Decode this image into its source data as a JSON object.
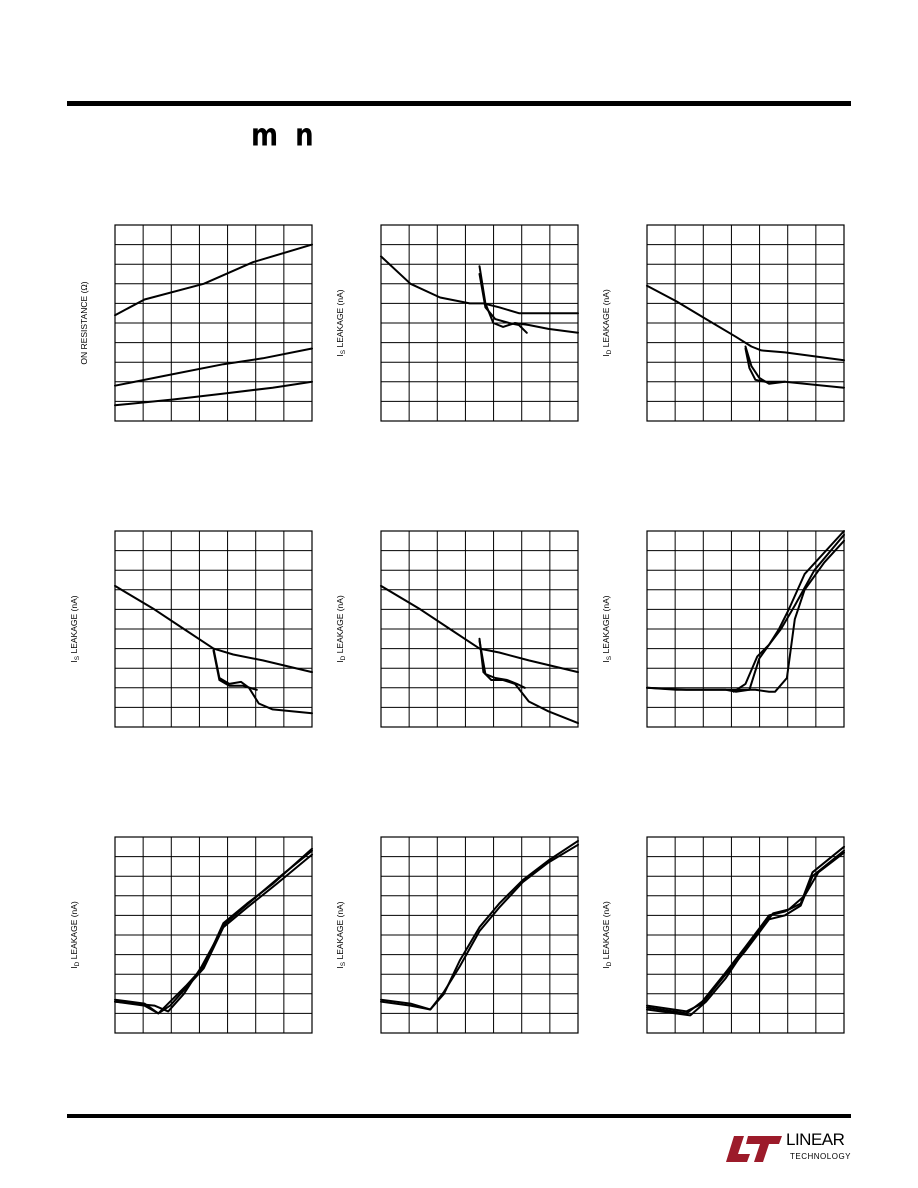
{
  "header": {
    "glyphs": "m  n"
  },
  "logo": {
    "word": "LINEAR",
    "sub": "TECHNOLOGY"
  },
  "chart_data": [
    {
      "type": "line",
      "ylabel_main": "ON RESISTANCE (Ω)",
      "ylabel_sub": "",
      "xlim": [
        0,
        100
      ],
      "ylim": [
        0,
        100
      ],
      "grid": true,
      "series": [
        {
          "x": [
            0,
            15,
            45,
            70,
            100
          ],
          "y": [
            54,
            62,
            70,
            81,
            90
          ]
        },
        {
          "x": [
            0,
            25,
            55,
            75,
            100
          ],
          "y": [
            18,
            23,
            29,
            32,
            37
          ]
        },
        {
          "x": [
            0,
            30,
            55,
            80,
            100
          ],
          "y": [
            8,
            11,
            14,
            17,
            20
          ]
        }
      ]
    },
    {
      "type": "line",
      "ylabel_main": "I",
      "ylabel_sub": "S",
      "ylabel_tail": " LEAKAGE (nA)",
      "xlim": [
        0,
        100
      ],
      "ylim": [
        0,
        100
      ],
      "grid": true,
      "series": [
        {
          "x": [
            0,
            15,
            30,
            45,
            52,
            60,
            70,
            100
          ],
          "y": [
            84,
            70,
            63,
            60,
            60,
            58,
            55,
            55
          ]
        },
        {
          "x": [
            50,
            53,
            57,
            62,
            68,
            75,
            85,
            100
          ],
          "y": [
            79,
            60,
            50,
            48,
            50,
            49,
            47,
            45
          ]
        },
        {
          "x": [
            50,
            53,
            58,
            65,
            70,
            74
          ],
          "y": [
            75,
            58,
            52,
            50,
            49,
            45
          ]
        }
      ]
    },
    {
      "type": "line",
      "ylabel_main": "I",
      "ylabel_sub": "D",
      "ylabel_tail": " LEAKAGE (nA)",
      "xlim": [
        0,
        100
      ],
      "ylim": [
        0,
        100
      ],
      "grid": true,
      "series": [
        {
          "x": [
            0,
            15,
            30,
            45,
            53,
            58,
            70,
            100
          ],
          "y": [
            69,
            61,
            52,
            43,
            38,
            36,
            35,
            31
          ]
        },
        {
          "x": [
            50,
            52,
            55,
            60,
            70,
            100
          ],
          "y": [
            37,
            27,
            21,
            20,
            20,
            17
          ]
        },
        {
          "x": [
            50,
            53,
            57,
            62,
            70
          ],
          "y": [
            38,
            28,
            22,
            19,
            20
          ]
        }
      ]
    },
    {
      "type": "line",
      "ylabel_main": "I",
      "ylabel_sub": "S",
      "ylabel_tail": " LEAKAGE (nA)",
      "xlim": [
        0,
        100
      ],
      "ylim": [
        0,
        100
      ],
      "grid": true,
      "series": [
        {
          "x": [
            0,
            20,
            35,
            50,
            60,
            75,
            100
          ],
          "y": [
            72,
            60,
            50,
            40,
            37,
            34,
            28
          ]
        },
        {
          "x": [
            50,
            53,
            58,
            64,
            68,
            73,
            80,
            100
          ],
          "y": [
            40,
            25,
            22,
            23,
            20,
            12,
            9,
            7
          ]
        },
        {
          "x": [
            50,
            53,
            58,
            65,
            72
          ],
          "y": [
            39,
            24,
            21,
            21,
            19
          ]
        }
      ]
    },
    {
      "type": "line",
      "ylabel_main": "I",
      "ylabel_sub": "D",
      "ylabel_tail": " LEAKAGE (nA)",
      "xlim": [
        0,
        100
      ],
      "ylim": [
        0,
        100
      ],
      "grid": true,
      "series": [
        {
          "x": [
            0,
            20,
            35,
            50,
            60,
            75,
            100
          ],
          "y": [
            72,
            60,
            50,
            40,
            38,
            34,
            28
          ]
        },
        {
          "x": [
            50,
            52,
            56,
            62,
            68,
            75,
            85,
            100
          ],
          "y": [
            45,
            28,
            24,
            24,
            22,
            13,
            8,
            2
          ]
        },
        {
          "x": [
            50,
            53,
            58,
            64,
            69,
            73
          ],
          "y": [
            44,
            27,
            25,
            24,
            22,
            20
          ]
        }
      ]
    },
    {
      "type": "line",
      "ylabel_main": "I",
      "ylabel_sub": "S",
      "ylabel_tail": " LEAKAGE (nA)",
      "xlim": [
        0,
        100
      ],
      "ylim": [
        0,
        100
      ],
      "grid": true,
      "series": [
        {
          "x": [
            0,
            15,
            30,
            40,
            45,
            52,
            57,
            62,
            67,
            72,
            80,
            100
          ],
          "y": [
            20,
            19,
            19,
            19,
            18,
            19,
            35,
            42,
            50,
            60,
            78,
            100
          ]
        },
        {
          "x": [
            0,
            20,
            42,
            55,
            62,
            65,
            71,
            75,
            80,
            90,
            100
          ],
          "y": [
            20,
            19,
            19,
            19,
            18,
            18,
            25,
            55,
            70,
            84,
            95
          ]
        },
        {
          "x": [
            44,
            50,
            56,
            62,
            68,
            75,
            85,
            100
          ],
          "y": [
            18,
            22,
            36,
            42,
            50,
            62,
            80,
            98
          ]
        }
      ]
    },
    {
      "type": "line",
      "ylabel_main": "I",
      "ylabel_sub": "D",
      "ylabel_tail": " LEAKAGE (nA)",
      "xlim": [
        0,
        100
      ],
      "ylim": [
        0,
        100
      ],
      "grid": true,
      "series": [
        {
          "x": [
            0,
            15,
            22,
            28,
            36,
            45,
            55,
            67,
            80,
            100
          ],
          "y": [
            17,
            15,
            10,
            16,
            24,
            34,
            56,
            66,
            76,
            94
          ]
        },
        {
          "x": [
            0,
            15,
            22,
            28,
            36,
            45,
            55,
            67,
            82,
            100
          ],
          "y": [
            16,
            14,
            10,
            14,
            23,
            33,
            54,
            64,
            76,
            91
          ]
        },
        {
          "x": [
            0,
            20,
            27,
            35,
            44,
            56,
            70,
            84,
            100
          ],
          "y": [
            16,
            14,
            11,
            20,
            34,
            56,
            68,
            80,
            93
          ]
        }
      ]
    },
    {
      "type": "line",
      "ylabel_main": "I",
      "ylabel_sub": "S",
      "ylabel_tail": " LEAKAGE (nA)",
      "xlim": [
        0,
        100
      ],
      "ylim": [
        0,
        100
      ],
      "grid": true,
      "series": [
        {
          "x": [
            0,
            15,
            25,
            32,
            40,
            50,
            60,
            72,
            85,
            100
          ],
          "y": [
            17,
            15,
            12,
            21,
            34,
            52,
            64,
            77,
            87,
            96
          ]
        },
        {
          "x": [
            0,
            15,
            25,
            32,
            40,
            50,
            60,
            72,
            85,
            100
          ],
          "y": [
            16,
            14,
            12,
            20,
            37,
            54,
            66,
            78,
            88,
            98
          ]
        }
      ]
    },
    {
      "type": "line",
      "ylabel_main": "I",
      "ylabel_sub": "D",
      "ylabel_tail": " LEAKAGE (nA)",
      "xlim": [
        0,
        100
      ],
      "ylim": [
        0,
        100
      ],
      "grid": true,
      "series": [
        {
          "x": [
            0,
            20,
            28,
            40,
            50,
            62,
            70,
            78,
            84,
            100
          ],
          "y": [
            14,
            11,
            15,
            30,
            42,
            58,
            60,
            65,
            80,
            93
          ]
        },
        {
          "x": [
            0,
            20,
            28,
            40,
            50,
            62,
            70,
            78,
            84,
            100
          ],
          "y": [
            13,
            10,
            16,
            31,
            44,
            60,
            62,
            66,
            82,
            95
          ]
        },
        {
          "x": [
            0,
            22,
            30,
            40,
            52,
            64,
            72,
            80,
            87,
            100
          ],
          "y": [
            12,
            9,
            16,
            28,
            46,
            61,
            63,
            70,
            82,
            92
          ]
        }
      ]
    }
  ]
}
